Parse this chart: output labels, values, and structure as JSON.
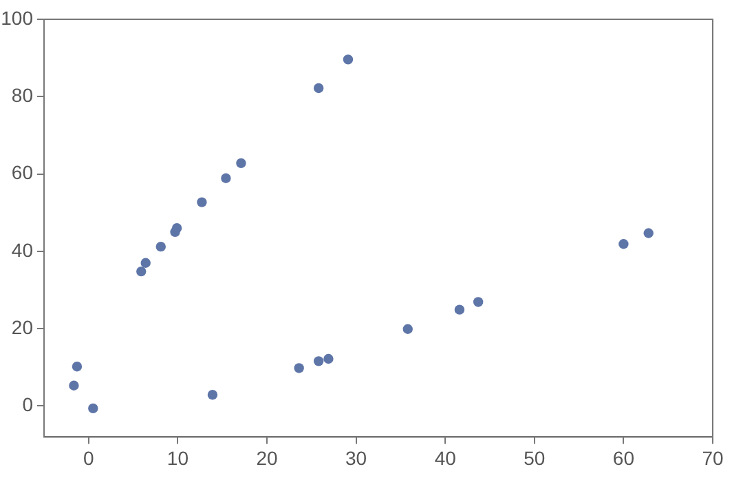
{
  "chart_data": {
    "type": "scatter",
    "marker": "circle",
    "grid": false,
    "legend": false,
    "series": [
      {
        "color": "#5e75a8",
        "x": [
          -1.65,
          -1.3,
          0.5,
          5.9,
          6.4,
          8.1,
          9.7,
          9.9,
          12.7,
          15.4,
          17.1,
          13.9,
          23.6,
          25.8,
          26.9,
          25.8,
          29.1,
          35.8,
          41.6,
          43.7,
          60,
          62.8
        ],
        "values": [
          5.3,
          10.2,
          -0.6,
          34.8,
          37,
          41.2,
          45,
          46,
          52.7,
          58.9,
          62.8,
          2.9,
          9.8,
          11.6,
          12.2,
          82.2,
          89.6,
          19.9,
          24.9,
          26.9,
          41.9,
          44.7
        ]
      }
    ],
    "xlim": [
      -5,
      70
    ],
    "xticks": [
      0,
      10,
      20,
      30,
      40,
      50,
      60,
      70
    ],
    "ylim": [
      -8,
      100
    ],
    "yticks": [
      0,
      20,
      40,
      60,
      80,
      100
    ]
  }
}
